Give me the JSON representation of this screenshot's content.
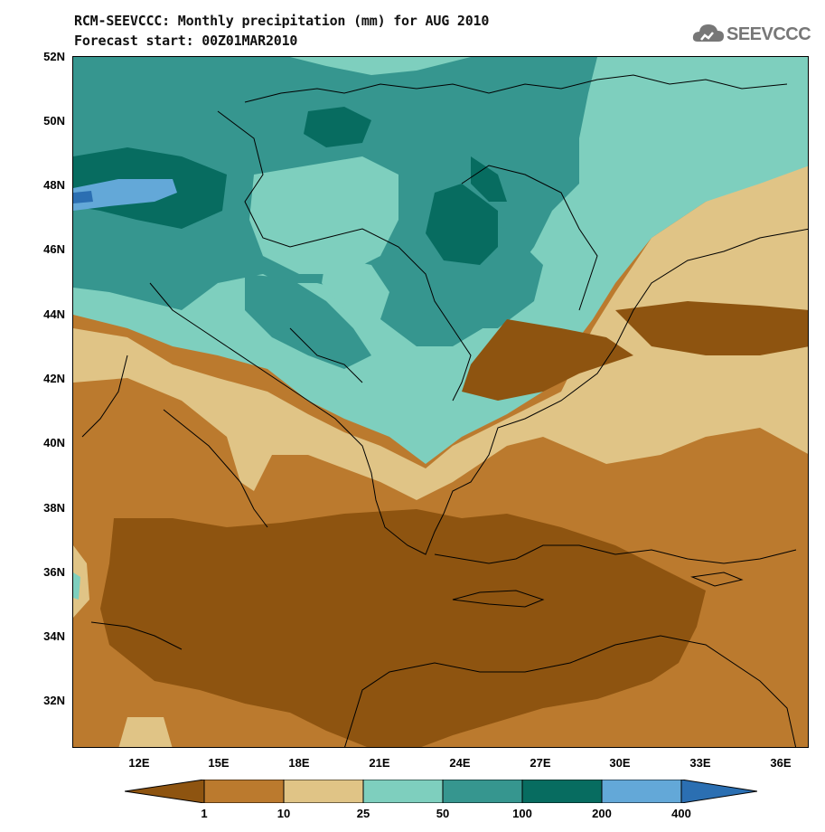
{
  "title_line1": "RCM-SEEVCCC: Monthly precipitation (mm) for AUG 2010",
  "title_line2": "Forecast start: 00Z01MAR2010",
  "logo": {
    "text": "SEEVCCC",
    "icon": "cloud-logo-icon"
  },
  "map": {
    "lat_labels": [
      "52N",
      "50N",
      "48N",
      "46N",
      "44N",
      "42N",
      "40N",
      "38N",
      "36N",
      "34N",
      "32N"
    ],
    "lon_labels": [
      "12E",
      "15E",
      "18E",
      "21E",
      "24E",
      "27E",
      "30E",
      "33E",
      "36E"
    ]
  },
  "colorbar": {
    "labels": [
      "1",
      "10",
      "25",
      "50",
      "100",
      "200",
      "400"
    ],
    "colors": {
      "lt1": "#8e5410",
      "1_10": "#bb7a2e",
      "10_25": "#e0c486",
      "25_50": "#7ecfbe",
      "50_100": "#36968f",
      "100_200": "#076c60",
      "200_400": "#63a8d8",
      "gt400": "#2b6fb2"
    }
  }
}
